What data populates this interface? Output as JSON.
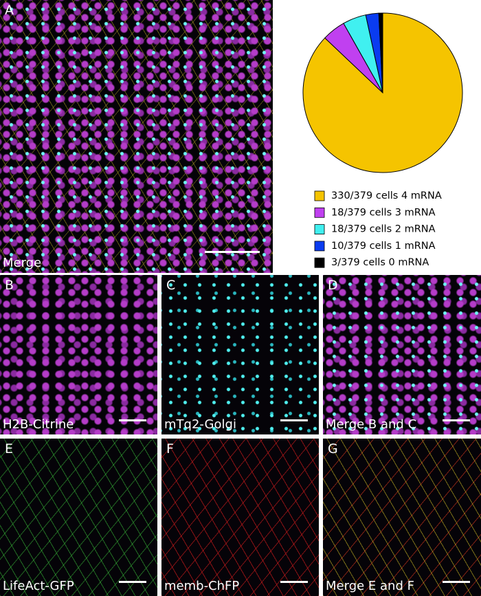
{
  "chart_data": {
    "type": "pie",
    "categories": [
      "330/379 cells 4 mRNA",
      "18/379 cells 3 mRNA",
      "18/379 cells 2 mRNA",
      "10/379 cells 1 mRNA",
      "3/379 cells 0 mRNA"
    ],
    "values": [
      330,
      18,
      18,
      10,
      3
    ],
    "colors": [
      "#f5c400",
      "#c040f0",
      "#40f0f0",
      "#0a3cf0",
      "#000000"
    ]
  },
  "panels": [
    {
      "letter": "A",
      "caption": "Merge"
    },
    {
      "letter": "B",
      "caption": "H2B-Citrine"
    },
    {
      "letter": "C",
      "caption": "mTq2-Golgi"
    },
    {
      "letter": "D",
      "caption": "Merge B and C"
    },
    {
      "letter": "E",
      "caption": "LifeAct-GFP"
    },
    {
      "letter": "F",
      "caption": "memb-ChFP"
    },
    {
      "letter": "G",
      "caption": "Merge E and F"
    }
  ]
}
